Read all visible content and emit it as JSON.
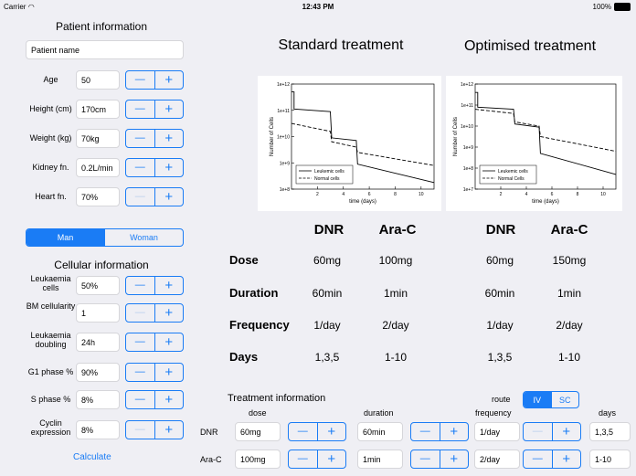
{
  "status": {
    "carrier": "Carrier",
    "time": "12:43 PM",
    "battery": "100%"
  },
  "patient": {
    "title": "Patient information",
    "name_placeholder": "Patient name",
    "fields": [
      {
        "label": "Age",
        "value": "50",
        "minus_enabled": true
      },
      {
        "label": "Height (cm)",
        "value": "170cm",
        "minus_enabled": true
      },
      {
        "label": "Weight (kg)",
        "value": "70kg",
        "minus_enabled": true
      },
      {
        "label": "Kidney fn.",
        "value": "0.2L/min",
        "minus_enabled": true
      },
      {
        "label": "Heart fn.",
        "value": "70%",
        "minus_enabled": false
      }
    ],
    "sex": {
      "options": [
        "Man",
        "Woman"
      ],
      "selected": "Man"
    }
  },
  "cellular": {
    "title": "Cellular information",
    "fields": [
      {
        "label": "Leukaemia cells",
        "value": "50%",
        "minus_enabled": true
      },
      {
        "label": "BM cellularity",
        "value": "1",
        "minus_enabled": false
      },
      {
        "label": "Leukaemia doubling",
        "value": "24h",
        "minus_enabled": true
      },
      {
        "label": "G1 phase %",
        "value": "90%",
        "minus_enabled": true
      },
      {
        "label": "S phase %",
        "value": "8%",
        "minus_enabled": true
      },
      {
        "label": "Cyclin expression",
        "value": "8%",
        "minus_enabled": false
      }
    ],
    "calculate_label": "Calculate"
  },
  "charts": {
    "standard_title": "Standard treatment",
    "optimised_title": "Optimised treatment"
  },
  "chart_data": [
    {
      "type": "line",
      "xlabel": "time (days)",
      "ylabel": "Number of Cells",
      "xlim": [
        0,
        11
      ],
      "ylim_log10": [
        8,
        12
      ],
      "yscale": "log",
      "xticks": [
        2,
        4,
        6,
        8,
        10
      ],
      "yticks": [
        "1e+8",
        "1e+9",
        "1e+10",
        "1e+11",
        "1e+12"
      ],
      "legend": "bottom-left",
      "series": [
        {
          "name": "Leukemic cells",
          "style": "solid",
          "x": [
            0,
            0.2,
            0.2,
            3,
            3.1,
            5,
            5.1,
            11
          ],
          "y_log10": [
            11.7,
            11.7,
            11.05,
            10.95,
            9.95,
            9.85,
            8.95,
            8.25
          ]
        },
        {
          "name": "Normal cells",
          "style": "dashed",
          "x": [
            0,
            3,
            3.1,
            5,
            5.1,
            11
          ],
          "y_log10": [
            10.5,
            10.2,
            9.8,
            9.6,
            9.4,
            8.9
          ]
        }
      ]
    },
    {
      "type": "line",
      "xlabel": "time (days)",
      "ylabel": "Number of Cells",
      "xlim": [
        0,
        11
      ],
      "ylim_log10": [
        7,
        12
      ],
      "yscale": "log",
      "xticks": [
        2,
        4,
        6,
        8,
        10
      ],
      "yticks": [
        "1e+7",
        "1e+8",
        "1e+9",
        "1e+10",
        "1e+11",
        "1e+12"
      ],
      "legend": "bottom-left",
      "series": [
        {
          "name": "Leukemic cells",
          "style": "solid",
          "x": [
            0,
            0.2,
            0.2,
            3,
            3.1,
            5,
            5.1,
            11
          ],
          "y_log10": [
            11.6,
            11.6,
            10.9,
            10.8,
            10.1,
            9.95,
            8.7,
            7.7
          ]
        },
        {
          "name": "Normal Cells",
          "style": "dashed",
          "x": [
            0,
            3,
            3.1,
            5,
            5.1,
            11
          ],
          "y_log10": [
            10.8,
            10.6,
            10.2,
            10.0,
            9.5,
            8.8
          ]
        }
      ]
    }
  ],
  "table": {
    "drug1": "DNR",
    "drug2": "Ara-C",
    "rows": [
      {
        "label": "Dose",
        "std": [
          "60mg",
          "100mg"
        ],
        "opt": [
          "60mg",
          "150mg"
        ]
      },
      {
        "label": "Duration",
        "std": [
          "60min",
          "1min"
        ],
        "opt": [
          "60min",
          "1min"
        ]
      },
      {
        "label": "Frequency",
        "std": [
          "1/day",
          "2/day"
        ],
        "opt": [
          "1/day",
          "2/day"
        ]
      },
      {
        "label": "Days",
        "std": [
          "1,3,5",
          "1-10"
        ],
        "opt": [
          "1,3,5",
          "1-10"
        ]
      }
    ]
  },
  "treatment": {
    "title": "Treatment information",
    "route_label": "route",
    "route_options": [
      "IV",
      "SC"
    ],
    "route_selected": "IV",
    "col_dose": "dose",
    "col_duration": "duration",
    "col_frequency": "frequency",
    "col_days": "days",
    "rows": [
      {
        "drug": "DNR",
        "dose": "60mg",
        "duration": "60min",
        "frequency": "1/day",
        "days": "1,3,5",
        "freq_minus_enabled": false
      },
      {
        "drug": "Ara-C",
        "dose": "100mg",
        "duration": "1min",
        "frequency": "2/day",
        "days": "1-10",
        "freq_minus_enabled": true
      }
    ]
  }
}
